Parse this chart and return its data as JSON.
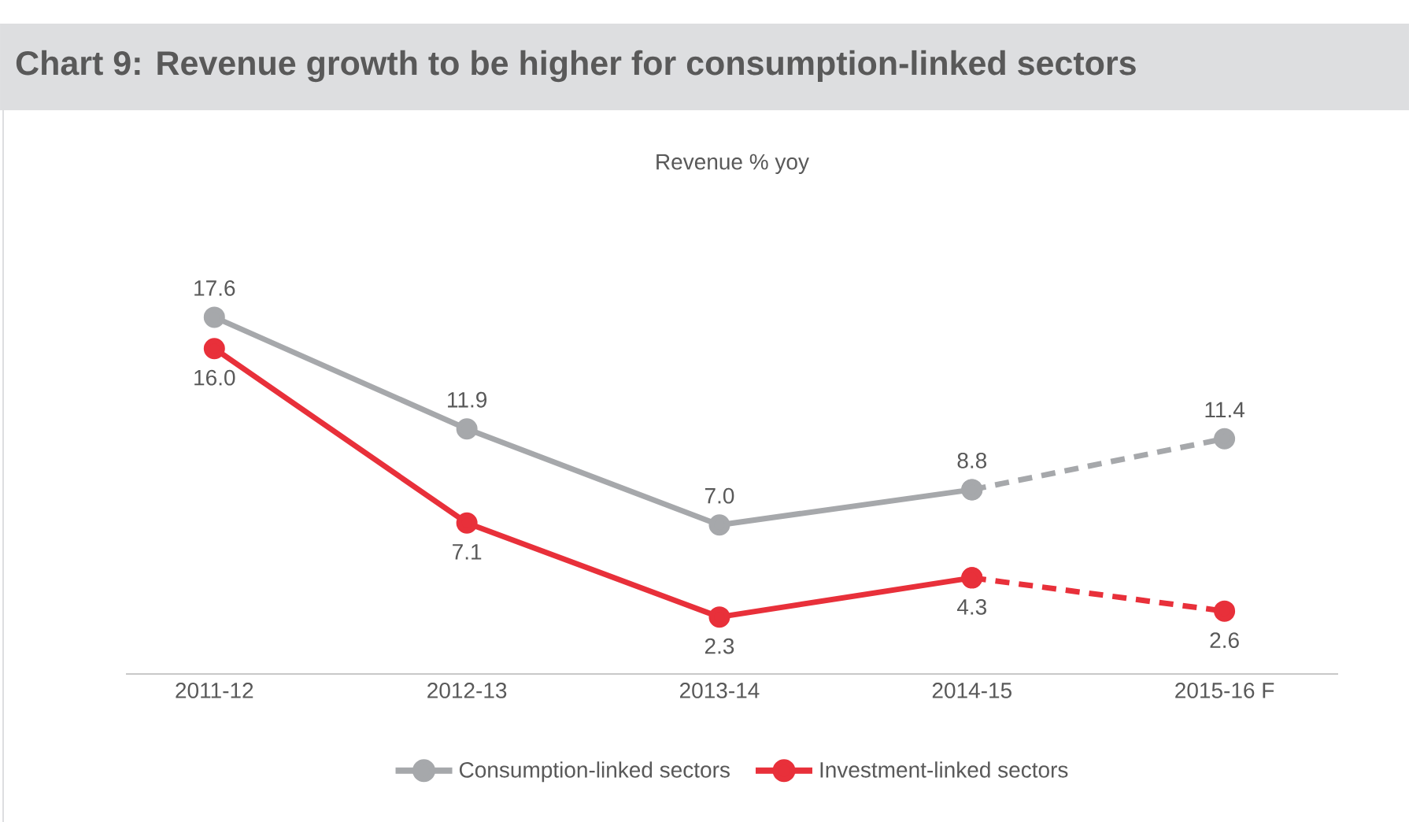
{
  "chart_data": {
    "type": "line",
    "title": "Chart 9: Revenue growth to be higher for consumption-linked sectors",
    "subtitle": "Revenue % yoy",
    "categories": [
      "2011-12",
      "2012-13",
      "2013-14",
      "2014-15",
      "2015-16 F"
    ],
    "series": [
      {
        "name": "Consumption-linked sectors",
        "color": "#a6a8ab",
        "line_style": "solid",
        "values": [
          17.6,
          11.9,
          7.0,
          8.8,
          null
        ],
        "value_labels": [
          "17.6",
          "11.9",
          "7.0",
          "8.8",
          null
        ]
      },
      {
        "color": "#a6a8ab",
        "line_style": "dashed",
        "values": [
          null,
          null,
          null,
          8.8,
          11.4
        ],
        "value_labels": [
          null,
          null,
          null,
          null,
          "11.4"
        ]
      },
      {
        "name": "Investment-linked sectors",
        "color": "#e8303a",
        "line_style": "solid",
        "values": [
          16.0,
          7.1,
          2.3,
          4.3,
          null
        ],
        "value_labels": [
          "16.0",
          "7.1",
          "2.3",
          "4.3",
          null
        ]
      },
      {
        "color": "#e8303a",
        "line_style": "dashed",
        "values": [
          null,
          null,
          null,
          4.3,
          2.6
        ],
        "value_labels": [
          null,
          null,
          null,
          null,
          "2.6"
        ]
      }
    ],
    "tick_labels": "x",
    "marker": "circle",
    "legend": "bottom",
    "grid": false
  }
}
